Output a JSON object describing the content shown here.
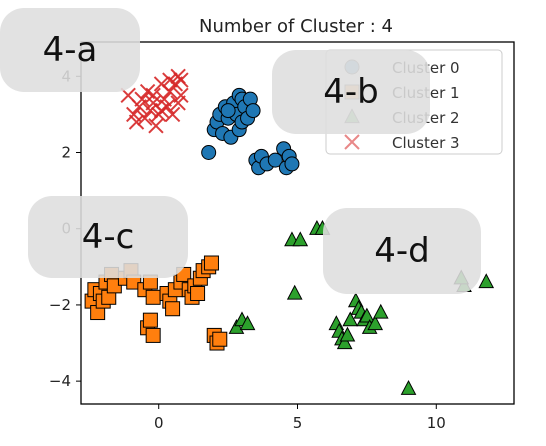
{
  "chart_data": {
    "type": "scatter",
    "title": "Number of Cluster : 4",
    "xlabel": "",
    "ylabel": "",
    "xlim": [
      -2.8,
      12.8
    ],
    "ylim": [
      -4.6,
      4.9
    ],
    "xticks": [
      "0",
      "5",
      "10"
    ],
    "yticks": [
      "4",
      "2",
      "0",
      "−2",
      "−4"
    ],
    "grid": false,
    "legend_position": "top-right",
    "series": [
      {
        "name": "Cluster 0",
        "marker": "circle",
        "color": "#1f77b4",
        "points": [
          [
            1.8,
            2.0
          ],
          [
            2.0,
            2.6
          ],
          [
            2.1,
            2.8
          ],
          [
            2.2,
            3.0
          ],
          [
            2.3,
            2.5
          ],
          [
            2.4,
            3.2
          ],
          [
            2.5,
            2.9
          ],
          [
            2.6,
            2.4
          ],
          [
            2.7,
            3.3
          ],
          [
            2.8,
            3.0
          ],
          [
            2.9,
            2.6
          ],
          [
            2.9,
            3.5
          ],
          [
            3.0,
            2.8
          ],
          [
            3.0,
            3.4
          ],
          [
            3.1,
            3.2
          ],
          [
            3.2,
            2.9
          ],
          [
            3.3,
            3.4
          ],
          [
            3.4,
            3.1
          ],
          [
            2.5,
            3.1
          ],
          [
            3.5,
            1.8
          ],
          [
            3.6,
            1.6
          ],
          [
            3.7,
            1.9
          ],
          [
            3.9,
            1.7
          ],
          [
            4.2,
            1.8
          ],
          [
            4.5,
            2.1
          ],
          [
            4.6,
            1.6
          ],
          [
            4.7,
            1.9
          ],
          [
            4.8,
            1.7
          ]
        ]
      },
      {
        "name": "Cluster 1",
        "marker": "square",
        "color": "#ff7f0e",
        "points": [
          [
            -2.4,
            -1.9
          ],
          [
            -2.3,
            -1.6
          ],
          [
            -2.2,
            -2.2
          ],
          [
            -2.1,
            -1.7
          ],
          [
            -2.0,
            -1.9
          ],
          [
            -1.9,
            -1.4
          ],
          [
            -1.8,
            -1.8
          ],
          [
            -1.7,
            -1.2
          ],
          [
            -1.6,
            -1.5
          ],
          [
            -1.2,
            -1.3
          ],
          [
            -1.0,
            -1.1
          ],
          [
            -0.9,
            -1.4
          ],
          [
            -0.5,
            -1.6
          ],
          [
            -0.3,
            -1.4
          ],
          [
            -0.2,
            -1.8
          ],
          [
            -0.4,
            -2.6
          ],
          [
            -0.3,
            -2.4
          ],
          [
            -0.2,
            -2.8
          ],
          [
            0.3,
            -1.7
          ],
          [
            0.4,
            -1.9
          ],
          [
            0.5,
            -2.1
          ],
          [
            0.6,
            -1.6
          ],
          [
            0.8,
            -1.4
          ],
          [
            0.9,
            -1.2
          ],
          [
            1.1,
            -1.6
          ],
          [
            1.2,
            -1.8
          ],
          [
            1.3,
            -1.5
          ],
          [
            1.4,
            -1.7
          ],
          [
            1.5,
            -1.3
          ],
          [
            1.6,
            -1.1
          ],
          [
            1.8,
            -1.0
          ],
          [
            1.9,
            -0.9
          ],
          [
            2.0,
            -2.8
          ],
          [
            2.1,
            -3.0
          ],
          [
            2.2,
            -2.9
          ]
        ]
      },
      {
        "name": "Cluster 2",
        "marker": "triangle",
        "color": "#2ca02c",
        "points": [
          [
            2.8,
            -2.6
          ],
          [
            3.0,
            -2.4
          ],
          [
            3.2,
            -2.5
          ],
          [
            4.8,
            -0.3
          ],
          [
            5.1,
            -0.3
          ],
          [
            5.7,
            0.0
          ],
          [
            5.9,
            0.0
          ],
          [
            4.9,
            -1.7
          ],
          [
            6.4,
            -2.5
          ],
          [
            6.5,
            -2.7
          ],
          [
            6.6,
            -2.9
          ],
          [
            6.7,
            -3.0
          ],
          [
            6.8,
            -2.8
          ],
          [
            6.9,
            -2.4
          ],
          [
            7.1,
            -1.9
          ],
          [
            7.2,
            -2.1
          ],
          [
            7.3,
            -2.2
          ],
          [
            7.4,
            -2.4
          ],
          [
            7.5,
            -2.3
          ],
          [
            7.6,
            -2.6
          ],
          [
            7.8,
            -2.5
          ],
          [
            8.0,
            -2.2
          ],
          [
            9.0,
            -4.2
          ],
          [
            11.0,
            -1.5
          ],
          [
            11.8,
            -1.4
          ],
          [
            10.9,
            -1.3
          ]
        ]
      },
      {
        "name": "Cluster 3",
        "marker": "x",
        "color": "#d62728",
        "points": [
          [
            -1.1,
            3.5
          ],
          [
            -0.9,
            3.0
          ],
          [
            -0.8,
            2.8
          ],
          [
            -0.7,
            3.2
          ],
          [
            -0.6,
            3.4
          ],
          [
            -0.5,
            2.9
          ],
          [
            -0.4,
            3.6
          ],
          [
            -0.3,
            3.1
          ],
          [
            -0.2,
            3.3
          ],
          [
            -0.1,
            2.7
          ],
          [
            0.0,
            3.0
          ],
          [
            0.1,
            3.8
          ],
          [
            0.2,
            3.4
          ],
          [
            0.3,
            3.2
          ],
          [
            0.4,
            3.6
          ],
          [
            0.5,
            3.0
          ],
          [
            0.6,
            3.8
          ],
          [
            0.7,
            4.0
          ],
          [
            0.8,
            3.5
          ],
          [
            0.8,
            3.9
          ],
          [
            0.7,
            3.3
          ],
          [
            0.4,
            3.9
          ],
          [
            -0.2,
            3.5
          ],
          [
            0.1,
            3.1
          ]
        ]
      }
    ]
  },
  "overlay_labels": [
    {
      "text": "4-a"
    },
    {
      "text": "4-b"
    },
    {
      "text": "4-c"
    },
    {
      "text": "4-d"
    }
  ]
}
